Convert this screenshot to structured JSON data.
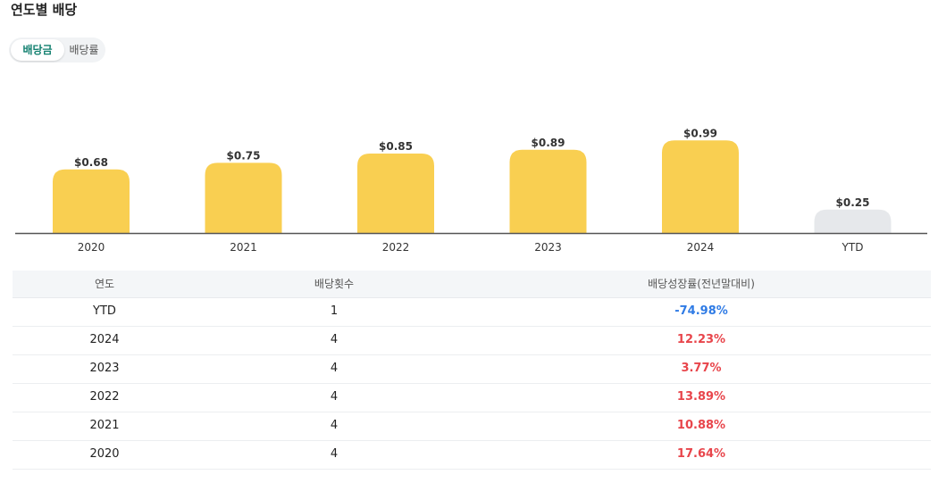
{
  "title": "연도별 배당",
  "toggle": {
    "active_label": "배당금",
    "inactive_label": "배당률"
  },
  "colors": {
    "bar": "#f9cf51",
    "bar_ytd": "#e6e8eb",
    "axis": "#555555",
    "negative": "#2f7be5",
    "positive": "#e8454b"
  },
  "chart_data": {
    "type": "bar",
    "categories": [
      "2020",
      "2021",
      "2022",
      "2023",
      "2024",
      "YTD"
    ],
    "values": [
      0.68,
      0.75,
      0.85,
      0.89,
      0.99,
      0.25
    ],
    "value_labels": [
      "$0.68",
      "$0.75",
      "$0.85",
      "$0.89",
      "$0.99",
      "$0.25"
    ],
    "highlight_last": true,
    "ylim": [
      0,
      1.05
    ],
    "grid": false,
    "legend": "none"
  },
  "table": {
    "headers": [
      "연도",
      "배당횟수",
      "배당성장률(전년말대비)"
    ],
    "rows": [
      {
        "year": "YTD",
        "count": "1",
        "growth": "-74.98%",
        "sign": "neg"
      },
      {
        "year": "2024",
        "count": "4",
        "growth": "12.23%",
        "sign": "pos"
      },
      {
        "year": "2023",
        "count": "4",
        "growth": "3.77%",
        "sign": "pos"
      },
      {
        "year": "2022",
        "count": "4",
        "growth": "13.89%",
        "sign": "pos"
      },
      {
        "year": "2021",
        "count": "4",
        "growth": "10.88%",
        "sign": "pos"
      },
      {
        "year": "2020",
        "count": "4",
        "growth": "17.64%",
        "sign": "pos"
      }
    ]
  }
}
